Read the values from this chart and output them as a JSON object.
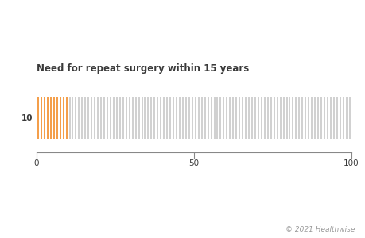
{
  "title": "Need for repeat surgery within 15 years",
  "total_figures": 100,
  "highlighted_figures": 10,
  "highlight_color": "#F28C28",
  "default_color": "#C8C8C8",
  "label_count": "10",
  "x_tick_positions": [
    0,
    50,
    100
  ],
  "x_tick_labels": [
    "0",
    "50",
    "100"
  ],
  "copyright_text": "© 2021 Healthwise",
  "title_fontsize": 8.5,
  "label_fontsize": 7.5,
  "tick_fontsize": 7.5,
  "copyright_fontsize": 6.5,
  "background_color": "#ffffff",
  "text_color": "#3a3a3a",
  "axis_color": "#888888"
}
